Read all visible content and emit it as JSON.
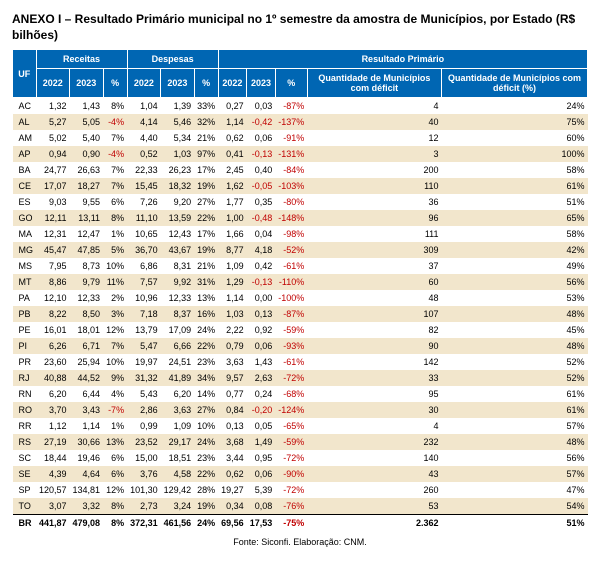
{
  "title": "ANEXO I – Resultado Primário municipal no 1º semestre da amostra de Municípios, por Estado (R$ bilhões)",
  "headers": {
    "uf": "UF",
    "receitas": "Receitas",
    "despesas": "Despesas",
    "resultado": "Resultado Primário",
    "y2022": "2022",
    "y2023": "2023",
    "pct": "%",
    "qtd_def": "Quantidade de Municípios com déficit",
    "qtd_def_pct": "Quantidade de Municípios com déficit (%)"
  },
  "rows": [
    {
      "uf": "AC",
      "r22": "1,32",
      "r23": "1,43",
      "rp": "8%",
      "rpc": "black",
      "d22": "1,04",
      "d23": "1,39",
      "dp": "33%",
      "p22": "0,27",
      "p23": "0,03",
      "pp": "-87%",
      "ppc": "red",
      "q": "4",
      "qp": "24%"
    },
    {
      "uf": "AL",
      "r22": "5,27",
      "r23": "5,05",
      "rp": "-4%",
      "rpc": "red",
      "d22": "4,14",
      "d23": "5,46",
      "dp": "32%",
      "p22": "1,14",
      "p23": "-0,42",
      "pp": "-137%",
      "ppc": "red",
      "q": "40",
      "qp": "75%"
    },
    {
      "uf": "AM",
      "r22": "5,02",
      "r23": "5,40",
      "rp": "7%",
      "rpc": "black",
      "d22": "4,40",
      "d23": "5,34",
      "dp": "21%",
      "p22": "0,62",
      "p23": "0,06",
      "pp": "-91%",
      "ppc": "red",
      "q": "12",
      "qp": "60%"
    },
    {
      "uf": "AP",
      "r22": "0,94",
      "r23": "0,90",
      "rp": "-4%",
      "rpc": "red",
      "d22": "0,52",
      "d23": "1,03",
      "dp": "97%",
      "p22": "0,41",
      "p23": "-0,13",
      "pp": "-131%",
      "ppc": "red",
      "q": "3",
      "qp": "100%"
    },
    {
      "uf": "BA",
      "r22": "24,77",
      "r23": "26,63",
      "rp": "7%",
      "rpc": "black",
      "d22": "22,33",
      "d23": "26,23",
      "dp": "17%",
      "p22": "2,45",
      "p23": "0,40",
      "pp": "-84%",
      "ppc": "red",
      "q": "200",
      "qp": "58%"
    },
    {
      "uf": "CE",
      "r22": "17,07",
      "r23": "18,27",
      "rp": "7%",
      "rpc": "black",
      "d22": "15,45",
      "d23": "18,32",
      "dp": "19%",
      "p22": "1,62",
      "p23": "-0,05",
      "pp": "-103%",
      "ppc": "red",
      "q": "110",
      "qp": "61%"
    },
    {
      "uf": "ES",
      "r22": "9,03",
      "r23": "9,55",
      "rp": "6%",
      "rpc": "black",
      "d22": "7,26",
      "d23": "9,20",
      "dp": "27%",
      "p22": "1,77",
      "p23": "0,35",
      "pp": "-80%",
      "ppc": "red",
      "q": "36",
      "qp": "51%"
    },
    {
      "uf": "GO",
      "r22": "12,11",
      "r23": "13,11",
      "rp": "8%",
      "rpc": "black",
      "d22": "11,10",
      "d23": "13,59",
      "dp": "22%",
      "p22": "1,00",
      "p23": "-0,48",
      "pp": "-148%",
      "ppc": "red",
      "q": "96",
      "qp": "65%"
    },
    {
      "uf": "MA",
      "r22": "12,31",
      "r23": "12,47",
      "rp": "1%",
      "rpc": "black",
      "d22": "10,65",
      "d23": "12,43",
      "dp": "17%",
      "p22": "1,66",
      "p23": "0,04",
      "pp": "-98%",
      "ppc": "red",
      "q": "111",
      "qp": "58%"
    },
    {
      "uf": "MG",
      "r22": "45,47",
      "r23": "47,85",
      "rp": "5%",
      "rpc": "black",
      "d22": "36,70",
      "d23": "43,67",
      "dp": "19%",
      "p22": "8,77",
      "p23": "4,18",
      "pp": "-52%",
      "ppc": "red",
      "q": "309",
      "qp": "42%"
    },
    {
      "uf": "MS",
      "r22": "7,95",
      "r23": "8,73",
      "rp": "10%",
      "rpc": "black",
      "d22": "6,86",
      "d23": "8,31",
      "dp": "21%",
      "p22": "1,09",
      "p23": "0,42",
      "pp": "-61%",
      "ppc": "red",
      "q": "37",
      "qp": "49%"
    },
    {
      "uf": "MT",
      "r22": "8,86",
      "r23": "9,79",
      "rp": "11%",
      "rpc": "black",
      "d22": "7,57",
      "d23": "9,92",
      "dp": "31%",
      "p22": "1,29",
      "p23": "-0,13",
      "pp": "-110%",
      "ppc": "red",
      "q": "60",
      "qp": "56%"
    },
    {
      "uf": "PA",
      "r22": "12,10",
      "r23": "12,33",
      "rp": "2%",
      "rpc": "black",
      "d22": "10,96",
      "d23": "12,33",
      "dp": "13%",
      "p22": "1,14",
      "p23": "0,00",
      "pp": "-100%",
      "ppc": "red",
      "q": "48",
      "qp": "53%"
    },
    {
      "uf": "PB",
      "r22": "8,22",
      "r23": "8,50",
      "rp": "3%",
      "rpc": "black",
      "d22": "7,18",
      "d23": "8,37",
      "dp": "16%",
      "p22": "1,03",
      "p23": "0,13",
      "pp": "-87%",
      "ppc": "red",
      "q": "107",
      "qp": "48%"
    },
    {
      "uf": "PE",
      "r22": "16,01",
      "r23": "18,01",
      "rp": "12%",
      "rpc": "black",
      "d22": "13,79",
      "d23": "17,09",
      "dp": "24%",
      "p22": "2,22",
      "p23": "0,92",
      "pp": "-59%",
      "ppc": "red",
      "q": "82",
      "qp": "45%"
    },
    {
      "uf": "PI",
      "r22": "6,26",
      "r23": "6,71",
      "rp": "7%",
      "rpc": "black",
      "d22": "5,47",
      "d23": "6,66",
      "dp": "22%",
      "p22": "0,79",
      "p23": "0,06",
      "pp": "-93%",
      "ppc": "red",
      "q": "90",
      "qp": "48%"
    },
    {
      "uf": "PR",
      "r22": "23,60",
      "r23": "25,94",
      "rp": "10%",
      "rpc": "black",
      "d22": "19,97",
      "d23": "24,51",
      "dp": "23%",
      "p22": "3,63",
      "p23": "1,43",
      "pp": "-61%",
      "ppc": "red",
      "q": "142",
      "qp": "52%"
    },
    {
      "uf": "RJ",
      "r22": "40,88",
      "r23": "44,52",
      "rp": "9%",
      "rpc": "black",
      "d22": "31,32",
      "d23": "41,89",
      "dp": "34%",
      "p22": "9,57",
      "p23": "2,63",
      "pp": "-72%",
      "ppc": "red",
      "q": "33",
      "qp": "52%"
    },
    {
      "uf": "RN",
      "r22": "6,20",
      "r23": "6,44",
      "rp": "4%",
      "rpc": "black",
      "d22": "5,43",
      "d23": "6,20",
      "dp": "14%",
      "p22": "0,77",
      "p23": "0,24",
      "pp": "-68%",
      "ppc": "red",
      "q": "95",
      "qp": "61%"
    },
    {
      "uf": "RO",
      "r22": "3,70",
      "r23": "3,43",
      "rp": "-7%",
      "rpc": "red",
      "d22": "2,86",
      "d23": "3,63",
      "dp": "27%",
      "p22": "0,84",
      "p23": "-0,20",
      "pp": "-124%",
      "ppc": "red",
      "q": "30",
      "qp": "61%"
    },
    {
      "uf": "RR",
      "r22": "1,12",
      "r23": "1,14",
      "rp": "1%",
      "rpc": "black",
      "d22": "0,99",
      "d23": "1,09",
      "dp": "10%",
      "p22": "0,13",
      "p23": "0,05",
      "pp": "-65%",
      "ppc": "red",
      "q": "4",
      "qp": "57%"
    },
    {
      "uf": "RS",
      "r22": "27,19",
      "r23": "30,66",
      "rp": "13%",
      "rpc": "black",
      "d22": "23,52",
      "d23": "29,17",
      "dp": "24%",
      "p22": "3,68",
      "p23": "1,49",
      "pp": "-59%",
      "ppc": "red",
      "q": "232",
      "qp": "48%"
    },
    {
      "uf": "SC",
      "r22": "18,44",
      "r23": "19,46",
      "rp": "6%",
      "rpc": "black",
      "d22": "15,00",
      "d23": "18,51",
      "dp": "23%",
      "p22": "3,44",
      "p23": "0,95",
      "pp": "-72%",
      "ppc": "red",
      "q": "140",
      "qp": "56%"
    },
    {
      "uf": "SE",
      "r22": "4,39",
      "r23": "4,64",
      "rp": "6%",
      "rpc": "black",
      "d22": "3,76",
      "d23": "4,58",
      "dp": "22%",
      "p22": "0,62",
      "p23": "0,06",
      "pp": "-90%",
      "ppc": "red",
      "q": "43",
      "qp": "57%"
    },
    {
      "uf": "SP",
      "r22": "120,57",
      "r23": "134,81",
      "rp": "12%",
      "rpc": "black",
      "d22": "101,30",
      "d23": "129,42",
      "dp": "28%",
      "p22": "19,27",
      "p23": "5,39",
      "pp": "-72%",
      "ppc": "red",
      "q": "260",
      "qp": "47%"
    },
    {
      "uf": "TO",
      "r22": "3,07",
      "r23": "3,32",
      "rp": "8%",
      "rpc": "black",
      "d22": "2,73",
      "d23": "3,24",
      "dp": "19%",
      "p22": "0,34",
      "p23": "0,08",
      "pp": "-76%",
      "ppc": "red",
      "q": "53",
      "qp": "54%"
    }
  ],
  "total": {
    "uf": "BR",
    "r22": "441,87",
    "r23": "479,08",
    "rp": "8%",
    "rpc": "black",
    "d22": "372,31",
    "d23": "461,56",
    "dp": "24%",
    "p22": "69,56",
    "p23": "17,53",
    "pp": "-75%",
    "ppc": "red",
    "q": "2.362",
    "qp": "51%"
  },
  "footer": "Fonte: Siconfi. Elaboração: CNM."
}
